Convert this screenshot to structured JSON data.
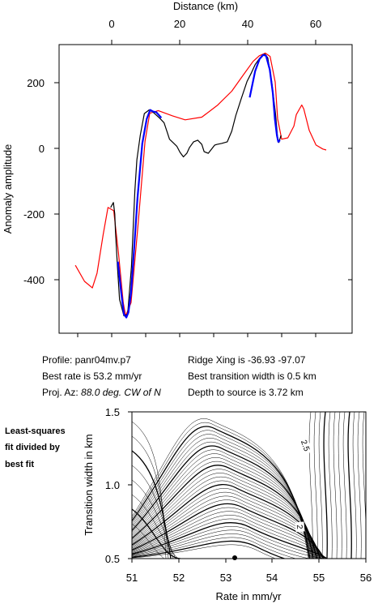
{
  "chart_data": [
    {
      "type": "line",
      "title": "",
      "xlabel": "Distance (km)",
      "ylabel": "Anomaly amplitude",
      "xlim": [
        -10,
        73
      ],
      "ylim": [
        -570,
        310
      ],
      "xticks": [
        0,
        20,
        40,
        60
      ],
      "yticks": [
        -400,
        -200,
        0,
        200
      ],
      "grid": false,
      "series": [
        {
          "color": "#ff0000",
          "x": [
            -10.7,
            -8.0,
            -5.7,
            -4.3,
            -2.5,
            -1.1,
            0.6,
            2.0,
            3.4,
            4.1,
            5.7,
            7.7,
            9.8,
            11.2,
            13.7,
            17.9,
            21.6,
            26.5,
            31.1,
            35.3,
            38.6,
            41.6,
            43.4,
            45.2,
            46.6,
            48.1,
            48.8,
            50.0,
            51.8,
            53.6,
            54.3,
            55.9,
            56.5,
            58.1,
            60.1,
            62.1,
            63.1
          ],
          "y": [
            -356,
            -405,
            -425,
            -380,
            -262,
            -180,
            -190,
            -320,
            -470,
            -510,
            -470,
            -240,
            22,
            107,
            115,
            99,
            87,
            95,
            131,
            174,
            222,
            265,
            282,
            290,
            280,
            202,
            90,
            28,
            32,
            68,
            103,
            132,
            120,
            55,
            10,
            -2,
            -5
          ]
        },
        {
          "color": "#000000",
          "x": [
            -0.3,
            0.5,
            0.9,
            1.1,
            1.7,
            2.3,
            3.6,
            4.7,
            5.8,
            6.8,
            7.4,
            8.4,
            9.6,
            11.0,
            12.2,
            14.2,
            15.4,
            16.3,
            17.0,
            18.1,
            19.2,
            20.1,
            21.1,
            22.1,
            22.9,
            24.1,
            25.3,
            26.5,
            27.2,
            28.4,
            29.4,
            30.3,
            31.0,
            32.3,
            34.0,
            35.3,
            36.5,
            38.0,
            39.8,
            41.1,
            42.2,
            43.5,
            44.4,
            45.1,
            45.9,
            47.1,
            48.2,
            48.8,
            49.2,
            49.8
          ],
          "y": [
            -180,
            -165,
            -200,
            -250,
            -360,
            -460,
            -510,
            -505,
            -360,
            -130,
            -35,
            40,
            106,
            117,
            110,
            91,
            78,
            50,
            28,
            17,
            6,
            -12,
            -26,
            -15,
            3,
            20,
            25,
            12,
            -10,
            -15,
            -2,
            10,
            12,
            15,
            20,
            52,
            100,
            148,
            204,
            230,
            255,
            274,
            285,
            287,
            276,
            200,
            105,
            30,
            18,
            40
          ]
        },
        {
          "color": "#0000ff",
          "x": [
            1.8,
            2.8,
            3.6,
            4.3,
            4.9,
            5.7,
            6.5,
            7.6,
            9.0,
            10.3,
            11.3,
            12.2,
            13.1,
            14.0,
            14.6,
            40.6,
            42.2,
            43.5,
            44.6,
            45.4,
            46.5,
            47.4,
            48.0,
            48.6,
            49.0,
            49.5
          ],
          "y": [
            -345,
            -440,
            -505,
            -515,
            -500,
            -440,
            -320,
            -150,
            15,
            90,
            117,
            112,
            110,
            100,
            93,
            155,
            235,
            272,
            285,
            282,
            240,
            168,
            90,
            40,
            20,
            25
          ]
        }
      ]
    },
    {
      "type": "contour",
      "title": "",
      "xlabel": "Rate in mm/yr",
      "ylabel": "Transition width in km",
      "xlim": [
        51,
        56
      ],
      "ylim": [
        0.5,
        1.5
      ],
      "xticks": [
        51,
        52,
        53,
        54,
        55,
        56
      ],
      "yticks": [
        0.5,
        1.0,
        1.5
      ],
      "best_fit_marker": {
        "x": 53.2,
        "y": 0.5
      },
      "contour_labels": [
        "2.5",
        "2"
      ]
    }
  ],
  "info": {
    "profile": "Profile: panr04mv.p7",
    "best_rate": "Best rate is 53.2 mm/yr",
    "proj_az_prefix": "Proj. Az: ",
    "proj_az_value": "88.0 deg. CW of N",
    "ridge_xing": "Ridge Xing is -36.93 -97.07",
    "best_width": "Best transition width is 0.5 km",
    "depth": "Depth to source is   3.72 km"
  },
  "side_note": [
    "Least-squares",
    "fit divided by",
    "best fit"
  ],
  "top_ticks": [
    "0",
    "20",
    "40",
    "60"
  ],
  "left_ticks": [
    "200",
    "0",
    "-200",
    "-400"
  ],
  "bottom_ticks": [
    "51",
    "52",
    "53",
    "54",
    "55",
    "56"
  ],
  "contour_yticks": [
    "1.5",
    "1.0",
    "0.5"
  ]
}
